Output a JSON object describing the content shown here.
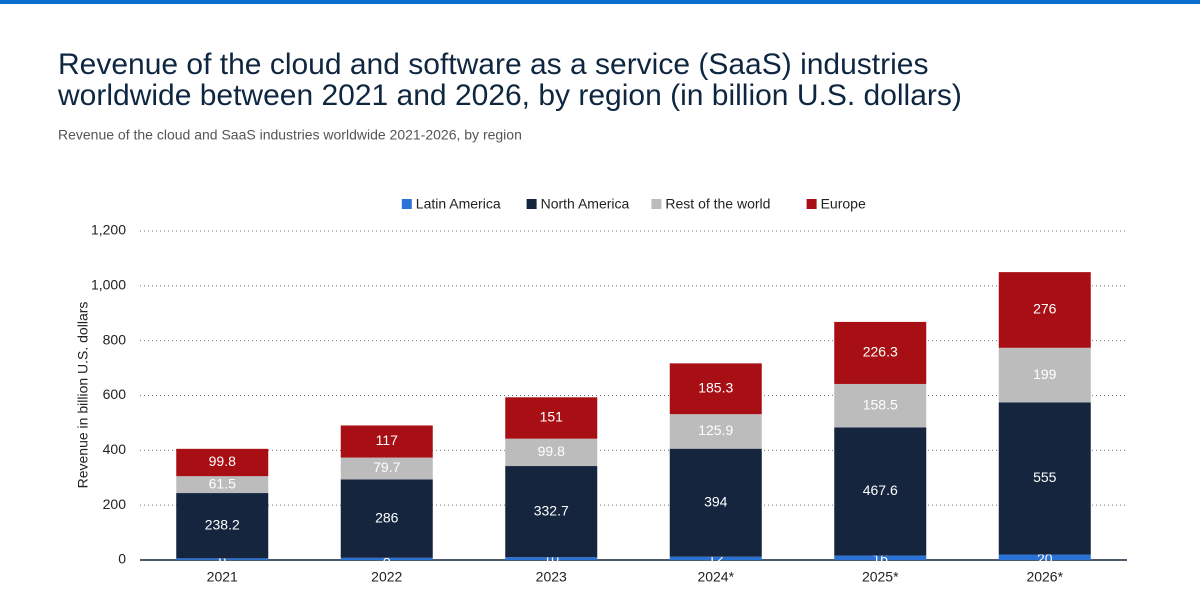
{
  "chart_data": {
    "type": "stacked_bar",
    "title": [
      "Revenue of the cloud and software as a service (SaaS) industries",
      "worldwide between 2021 and 2026, by region (in billion U.S. dollars)"
    ],
    "subtitle": "Revenue of the cloud and SaaS industries worldwide 2021-2026, by region",
    "y_label": "Revenue in billion U.S. dollars",
    "categories": [
      "2021",
      "2022",
      "2023",
      "2024*",
      "2025*",
      "2026*"
    ],
    "series": [
      {
        "name": "Latin America",
        "color": "#2b72d6",
        "values": [
          6,
          8,
          10,
          12,
          16,
          20
        ]
      },
      {
        "name": "North America",
        "color": "#14253d",
        "values": [
          238.2,
          286,
          332.7,
          394,
          467.6,
          555
        ]
      },
      {
        "name": "Rest of the world",
        "color": "#bcbcbc",
        "values": [
          61.5,
          79.7,
          99.8,
          125.9,
          158.5,
          199
        ]
      },
      {
        "name": "Europe",
        "color": "#a80f14",
        "values": [
          99.8,
          117,
          151,
          185.3,
          226.3,
          276
        ]
      }
    ],
    "ylim": [
      0,
      1200
    ],
    "yticks": [
      0,
      200,
      400,
      600,
      800,
      {
        "value": 1000,
        "label": "1,000"
      },
      {
        "value": 1200,
        "label": "1,200"
      }
    ],
    "grid": true,
    "legend": "top"
  }
}
